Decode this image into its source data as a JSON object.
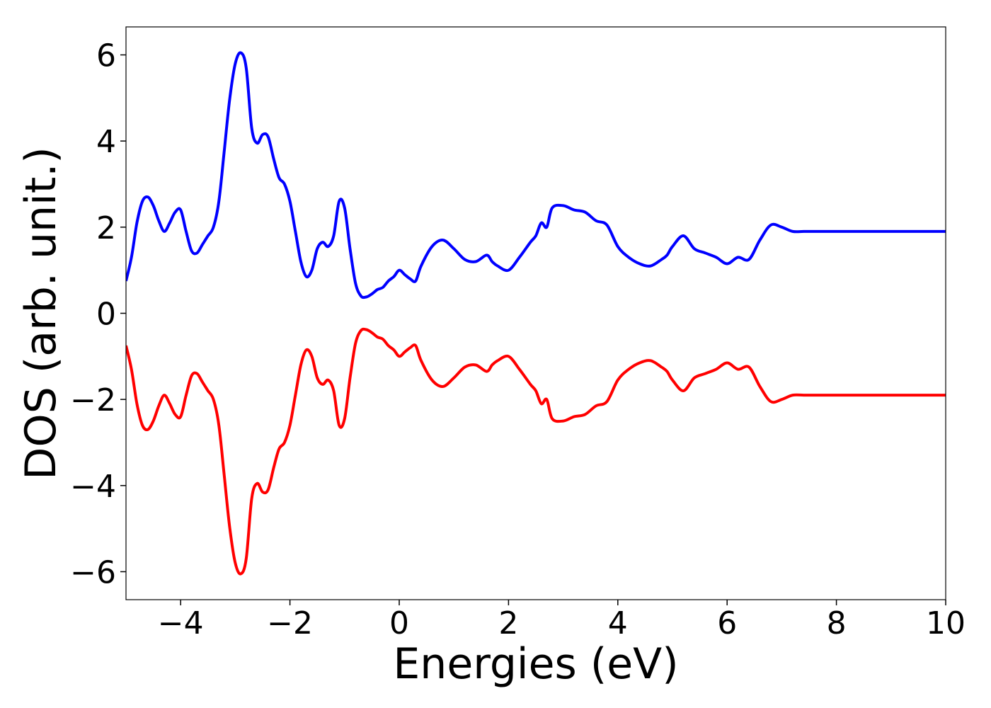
{
  "chart_data": {
    "type": "line",
    "xlabel": "Energies (eV)",
    "ylabel": "DOS (arb. unit.)",
    "xlim": [
      -5,
      10
    ],
    "ylim": [
      -6.65,
      6.65
    ],
    "xticks": [
      -4,
      -2,
      0,
      2,
      4,
      6,
      8,
      10
    ],
    "xtick_labels": [
      "−4",
      "−2",
      "0",
      "2",
      "4",
      "6",
      "8",
      "10"
    ],
    "yticks": [
      -6,
      -4,
      -2,
      0,
      2,
      4,
      6
    ],
    "ytick_labels": [
      "−6",
      "−4",
      "−2",
      "0",
      "2",
      "4",
      "6"
    ],
    "grid": false,
    "series": [
      {
        "color": "#0000ff",
        "x": [
          -5.0,
          -4.9,
          -4.8,
          -4.7,
          -4.6,
          -4.5,
          -4.4,
          -4.3,
          -4.2,
          -4.1,
          -4.0,
          -3.9,
          -3.8,
          -3.7,
          -3.6,
          -3.5,
          -3.4,
          -3.3,
          -3.2,
          -3.1,
          -3.0,
          -2.9,
          -2.8,
          -2.7,
          -2.6,
          -2.5,
          -2.4,
          -2.3,
          -2.2,
          -2.1,
          -2.0,
          -1.9,
          -1.8,
          -1.7,
          -1.6,
          -1.5,
          -1.4,
          -1.3,
          -1.2,
          -1.1,
          -1.0,
          -0.9,
          -0.8,
          -0.7,
          -0.6,
          -0.5,
          -0.4,
          -0.3,
          -0.2,
          -0.1,
          0.0,
          0.1,
          0.2,
          0.3,
          0.4,
          0.6,
          0.8,
          1.0,
          1.2,
          1.4,
          1.6,
          1.7,
          1.8,
          2.0,
          2.2,
          2.4,
          2.5,
          2.6,
          2.7,
          2.8,
          3.0,
          3.2,
          3.4,
          3.6,
          3.8,
          4.0,
          4.2,
          4.4,
          4.6,
          4.8,
          4.9,
          5.0,
          5.2,
          5.4,
          5.6,
          5.8,
          6.0,
          6.2,
          6.4,
          6.6,
          6.8,
          7.0,
          7.2,
          7.4,
          7.6,
          7.8,
          8.0,
          8.2,
          8.4,
          8.6,
          8.8,
          9.0,
          9.2,
          9.4,
          9.6,
          9.7,
          9.8,
          9.9,
          10.0
        ],
        "y": [
          0.75,
          1.3,
          2.1,
          2.6,
          2.7,
          2.5,
          2.15,
          1.9,
          2.1,
          2.35,
          2.4,
          1.9,
          1.45,
          1.4,
          1.6,
          1.8,
          2.0,
          2.6,
          3.8,
          5.0,
          5.8,
          6.05,
          5.7,
          4.3,
          3.95,
          4.15,
          4.1,
          3.6,
          3.15,
          3.0,
          2.6,
          1.9,
          1.2,
          0.85,
          1.0,
          1.5,
          1.65,
          1.55,
          1.8,
          2.6,
          2.45,
          1.5,
          0.7,
          0.4,
          0.38,
          0.45,
          0.55,
          0.6,
          0.75,
          0.85,
          1.0,
          0.9,
          0.8,
          0.75,
          1.1,
          1.55,
          1.7,
          1.5,
          1.25,
          1.2,
          1.35,
          1.2,
          1.1,
          1.0,
          1.3,
          1.65,
          1.8,
          2.1,
          2.0,
          2.45,
          2.5,
          2.4,
          2.35,
          2.15,
          2.05,
          1.55,
          1.3,
          1.15,
          1.1,
          1.25,
          1.35,
          1.55,
          1.8,
          1.5,
          1.4,
          1.3,
          1.15,
          1.3,
          1.25,
          1.7,
          2.05,
          2.0,
          1.9,
          1.9,
          1.9,
          1.9,
          1.9,
          1.9,
          1.9,
          1.9,
          1.9,
          1.9,
          1.9,
          1.9,
          1.9,
          1.9,
          1.9,
          1.9,
          1.9
        ]
      },
      {
        "color": "#ff0000",
        "x": [
          -5.0,
          -4.9,
          -4.8,
          -4.7,
          -4.6,
          -4.5,
          -4.4,
          -4.3,
          -4.2,
          -4.1,
          -4.0,
          -3.9,
          -3.8,
          -3.7,
          -3.6,
          -3.5,
          -3.4,
          -3.3,
          -3.2,
          -3.1,
          -3.0,
          -2.9,
          -2.8,
          -2.7,
          -2.6,
          -2.5,
          -2.4,
          -2.3,
          -2.2,
          -2.1,
          -2.0,
          -1.9,
          -1.8,
          -1.7,
          -1.6,
          -1.5,
          -1.4,
          -1.3,
          -1.2,
          -1.1,
          -1.0,
          -0.9,
          -0.8,
          -0.7,
          -0.6,
          -0.5,
          -0.4,
          -0.3,
          -0.2,
          -0.1,
          0.0,
          0.1,
          0.2,
          0.3,
          0.4,
          0.6,
          0.8,
          1.0,
          1.2,
          1.4,
          1.6,
          1.7,
          1.8,
          2.0,
          2.2,
          2.4,
          2.5,
          2.6,
          2.7,
          2.8,
          3.0,
          3.2,
          3.4,
          3.6,
          3.8,
          4.0,
          4.2,
          4.4,
          4.6,
          4.8,
          4.9,
          5.0,
          5.2,
          5.4,
          5.6,
          5.8,
          6.0,
          6.2,
          6.4,
          6.6,
          6.8,
          7.0,
          7.2,
          7.4,
          7.6,
          7.8,
          8.0,
          8.2,
          8.4,
          8.6,
          8.8,
          9.0,
          9.2,
          9.4,
          9.6,
          9.7,
          9.8,
          9.9,
          10.0
        ],
        "y": [
          -0.75,
          -1.3,
          -2.1,
          -2.6,
          -2.7,
          -2.5,
          -2.15,
          -1.9,
          -2.1,
          -2.35,
          -2.4,
          -1.9,
          -1.45,
          -1.4,
          -1.6,
          -1.8,
          -2.0,
          -2.6,
          -3.8,
          -5.0,
          -5.8,
          -6.05,
          -5.7,
          -4.3,
          -3.95,
          -4.15,
          -4.1,
          -3.6,
          -3.15,
          -3.0,
          -2.6,
          -1.9,
          -1.2,
          -0.85,
          -1.0,
          -1.5,
          -1.65,
          -1.55,
          -1.8,
          -2.6,
          -2.45,
          -1.5,
          -0.7,
          -0.4,
          -0.38,
          -0.45,
          -0.55,
          -0.6,
          -0.75,
          -0.85,
          -1.0,
          -0.9,
          -0.8,
          -0.75,
          -1.1,
          -1.55,
          -1.7,
          -1.5,
          -1.25,
          -1.2,
          -1.35,
          -1.2,
          -1.1,
          -1.0,
          -1.3,
          -1.65,
          -1.8,
          -2.1,
          -2.0,
          -2.45,
          -2.5,
          -2.4,
          -2.35,
          -2.15,
          -2.05,
          -1.55,
          -1.3,
          -1.15,
          -1.1,
          -1.25,
          -1.35,
          -1.55,
          -1.8,
          -1.5,
          -1.4,
          -1.3,
          -1.15,
          -1.3,
          -1.25,
          -1.7,
          -2.05,
          -2.0,
          -1.9,
          -1.9,
          -1.9,
          -1.9,
          -1.9,
          -1.9,
          -1.9,
          -1.9,
          -1.9,
          -1.9,
          -1.9,
          -1.9,
          -1.9,
          -1.9,
          -1.9,
          -1.9,
          -1.9
        ]
      }
    ]
  }
}
